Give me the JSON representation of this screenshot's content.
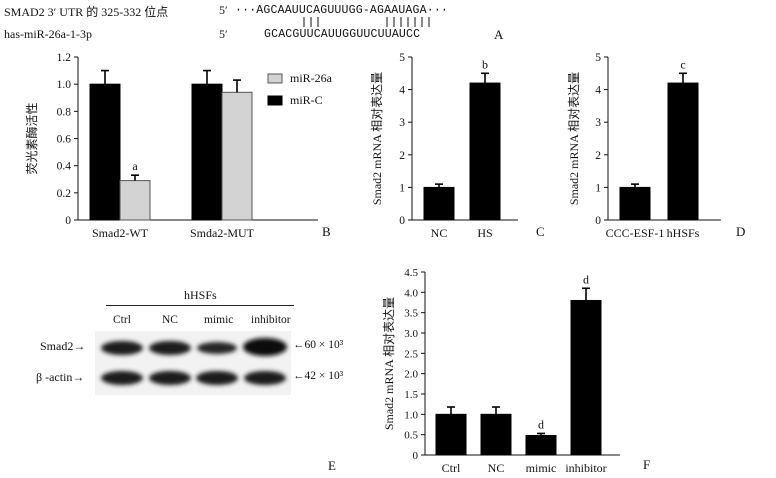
{
  "panel_a": {
    "row1_label": "SMAD2 3′ UTR 的 325-332 位点",
    "row1_prime": "5′",
    "row1_seq": "···AGCAAUUCAGUUUGG-AGAAUAGA···",
    "row2_label": "has-miR-26a-1-3p",
    "row2_prime": "5′",
    "row2_seq": "GCACGUUCAUUGGUUCUUAUCC",
    "letter": "A"
  },
  "panel_e": {
    "group_label": "hHSFs",
    "lanes": [
      "Ctrl",
      "NC",
      "mimic",
      "inhibitor"
    ],
    "rows": [
      {
        "label": "Smad2→",
        "marker": "←60 × 10³"
      },
      {
        "label": "β -actin→",
        "marker": "←42 × 10³"
      }
    ],
    "letter": "E"
  },
  "chart_data": [
    {
      "id": "B",
      "type": "bar",
      "categories": [
        "Smad2-WT",
        "Smda2-MUT"
      ],
      "ylabel": "荧光素酶活性",
      "ylim": [
        0,
        1.2
      ],
      "yticks": [
        "0",
        "0.2",
        "0.4",
        "0.6",
        "0.8",
        "1.0",
        "1.2"
      ],
      "series": [
        {
          "name": "miR-C",
          "color": "#000000",
          "values": [
            1.0,
            1.0
          ],
          "errors": [
            0.1,
            0.1
          ],
          "annotations": [
            "",
            ""
          ]
        },
        {
          "name": "miR-26a",
          "color": "#d3d3d3",
          "values": [
            0.29,
            0.94
          ],
          "errors": [
            0.04,
            0.09
          ],
          "annotations": [
            "a",
            ""
          ]
        }
      ],
      "legend": [
        {
          "name": "miR-26a",
          "color": "#d3d3d3"
        },
        {
          "name": "miR-C",
          "color": "#000000"
        }
      ],
      "legend_position": "right",
      "letter": "B"
    },
    {
      "id": "C",
      "type": "bar",
      "categories": [
        "NC",
        "HS"
      ],
      "ylabel": "Smad2 mRNA 相对表达量",
      "ylim": [
        0,
        5
      ],
      "yticks": [
        "0",
        "1",
        "2",
        "3",
        "4",
        "5"
      ],
      "series": [
        {
          "name": "",
          "color": "#000000",
          "values": [
            1.0,
            4.2
          ],
          "errors": [
            0.1,
            0.3
          ],
          "annotations": [
            "",
            "b"
          ]
        }
      ],
      "letter": "C"
    },
    {
      "id": "D",
      "type": "bar",
      "categories": [
        "CCC-ESF-1",
        "hHSFs"
      ],
      "ylabel": "Smad2 mRNA 相对表达量",
      "ylim": [
        0,
        5
      ],
      "yticks": [
        "0",
        "1",
        "2",
        "3",
        "4",
        "5"
      ],
      "series": [
        {
          "name": "",
          "color": "#000000",
          "values": [
            1.0,
            4.2
          ],
          "errors": [
            0.1,
            0.3
          ],
          "annotations": [
            "",
            "c"
          ]
        }
      ],
      "letter": "D"
    },
    {
      "id": "F",
      "type": "bar",
      "categories": [
        "Ctrl",
        "NC",
        "mimic",
        "inhibitor"
      ],
      "ylabel": "Smad2 mRNA 相对表达量",
      "ylim": [
        0,
        4.5
      ],
      "yticks": [
        "0",
        "0.5",
        "1.0",
        "1.5",
        "2.0",
        "2.5",
        "3.0",
        "3.5",
        "4.0",
        "4.5"
      ],
      "series": [
        {
          "name": "",
          "color": "#000000",
          "values": [
            1.0,
            1.0,
            0.48,
            3.8
          ],
          "errors": [
            0.18,
            0.18,
            0.05,
            0.3
          ],
          "annotations": [
            "",
            "",
            "d",
            "d"
          ]
        }
      ],
      "letter": "F"
    }
  ]
}
